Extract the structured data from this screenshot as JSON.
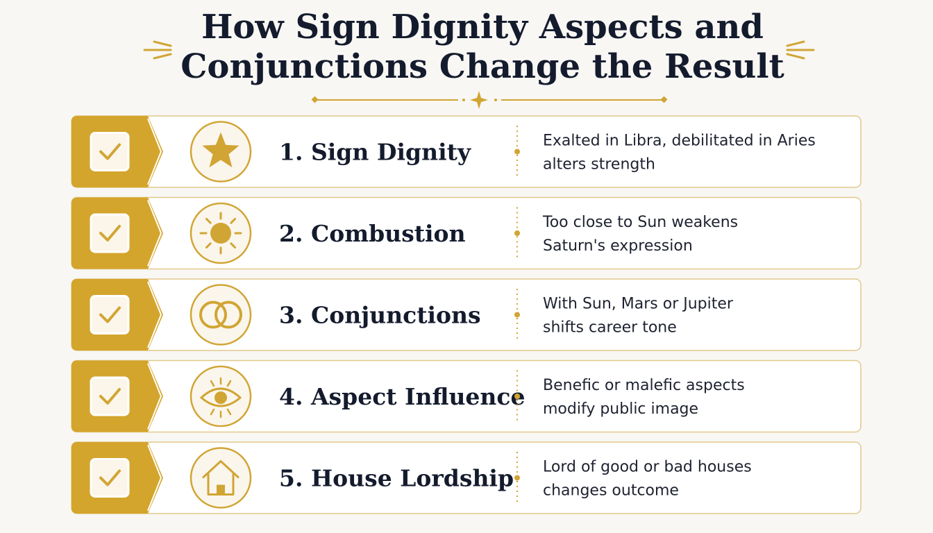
{
  "header": {
    "title_lines": [
      "How Sign Dignity Aspects and",
      "Conjunctions Change the Result"
    ]
  },
  "items": [
    {
      "label": "1. Sign Dignity",
      "description_lines": [
        "Exalted in Libra, debilitated in Aries",
        "alters strength"
      ]
    },
    {
      "label": "2. Combustion",
      "description_lines": [
        "Too close to Sun weakens",
        "Saturn's expression"
      ]
    },
    {
      "label": "3. Conjunctions",
      "description_lines": [
        "With Sun, Mars or Jupiter",
        "shifts career tone"
      ]
    },
    {
      "label": "4. Aspect Influence",
      "description_lines": [
        "Benefic or malefic aspects",
        "modify public image"
      ]
    },
    {
      "label": "5. House Lordship",
      "description_lines": [
        "Lord of good or bad houses",
        "changes outcome"
      ]
    }
  ]
}
